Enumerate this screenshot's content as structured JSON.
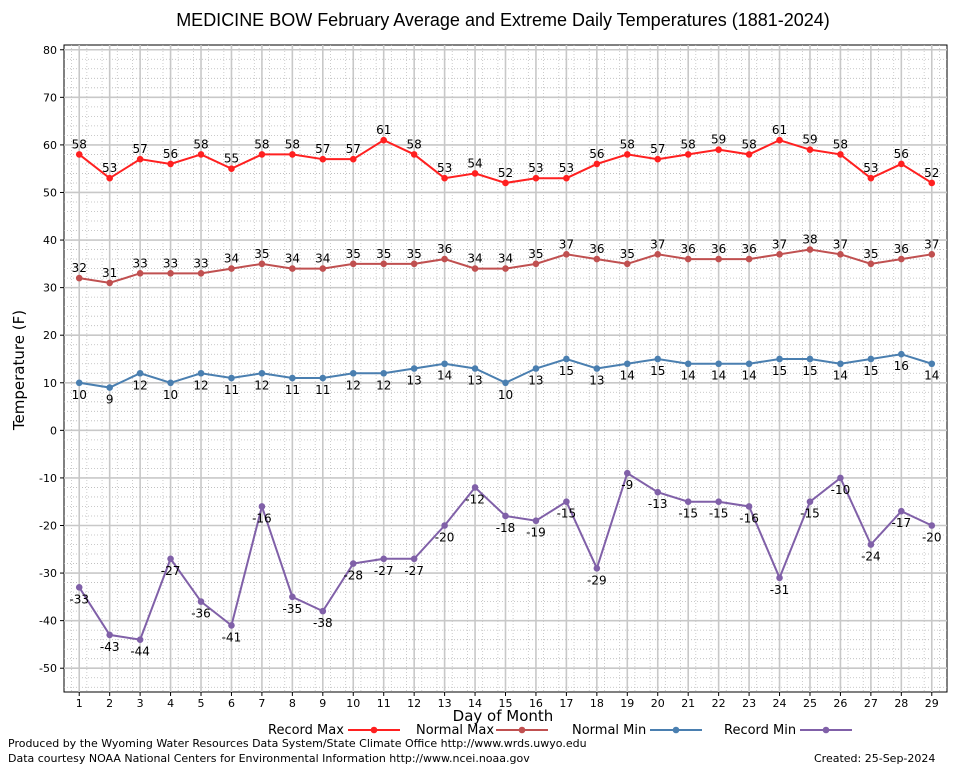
{
  "chart_data": {
    "type": "line",
    "title": "MEDICINE BOW February Average and Extreme Daily Temperatures (1881-2024)",
    "xlabel": "Day of Month",
    "ylabel": "Temperature (F)",
    "ylim": [
      -55,
      81
    ],
    "yticks": [
      -50,
      -40,
      -30,
      -20,
      -10,
      0,
      10,
      20,
      30,
      40,
      50,
      60,
      70,
      80
    ],
    "x": [
      1,
      2,
      3,
      4,
      5,
      6,
      7,
      8,
      9,
      10,
      11,
      12,
      13,
      14,
      15,
      16,
      17,
      18,
      19,
      20,
      21,
      22,
      23,
      24,
      25,
      26,
      27,
      28,
      29
    ],
    "grid": true,
    "legend_position": "bottom",
    "series": [
      {
        "name": "Record Max",
        "color": "#ff2020",
        "label_pos": "above",
        "values": [
          58,
          53,
          57,
          56,
          58,
          55,
          58,
          58,
          57,
          57,
          61,
          58,
          53,
          54,
          52,
          53,
          53,
          56,
          58,
          57,
          58,
          59,
          58,
          61,
          59,
          58,
          53,
          56,
          52
        ]
      },
      {
        "name": "Normal Max",
        "color": "#c05050",
        "label_pos": "above",
        "values": [
          32,
          31,
          33,
          33,
          33,
          34,
          35,
          34,
          34,
          35,
          35,
          35,
          36,
          34,
          34,
          35,
          37,
          36,
          35,
          37,
          36,
          36,
          36,
          37,
          38,
          37,
          35,
          36,
          37
        ]
      },
      {
        "name": "Normal Min",
        "color": "#4a7fb0",
        "label_pos": "below",
        "values": [
          10,
          9,
          12,
          10,
          12,
          11,
          12,
          11,
          11,
          12,
          12,
          13,
          14,
          13,
          10,
          13,
          15,
          13,
          14,
          15,
          14,
          14,
          14,
          15,
          15,
          14,
          15,
          16,
          14
        ]
      },
      {
        "name": "Record Min",
        "color": "#8060a8",
        "label_pos": "below",
        "values": [
          -33,
          -43,
          -44,
          -27,
          -36,
          -41,
          -16,
          -35,
          -38,
          -28,
          -27,
          -27,
          -20,
          -12,
          -18,
          -19,
          -15,
          -29,
          -9,
          -13,
          -15,
          -15,
          -16,
          -31,
          -15,
          -10,
          -24,
          -17,
          -20
        ]
      }
    ]
  },
  "footer": {
    "produced_by": "Produced by the Wyoming Water Resources Data System/State Climate Office http://www.wrds.uwyo.edu",
    "courtesy": "Data courtesy NOAA National Centers for Environmental Information http://www.ncei.noaa.gov",
    "created": "Created:  25-Sep-2024"
  }
}
